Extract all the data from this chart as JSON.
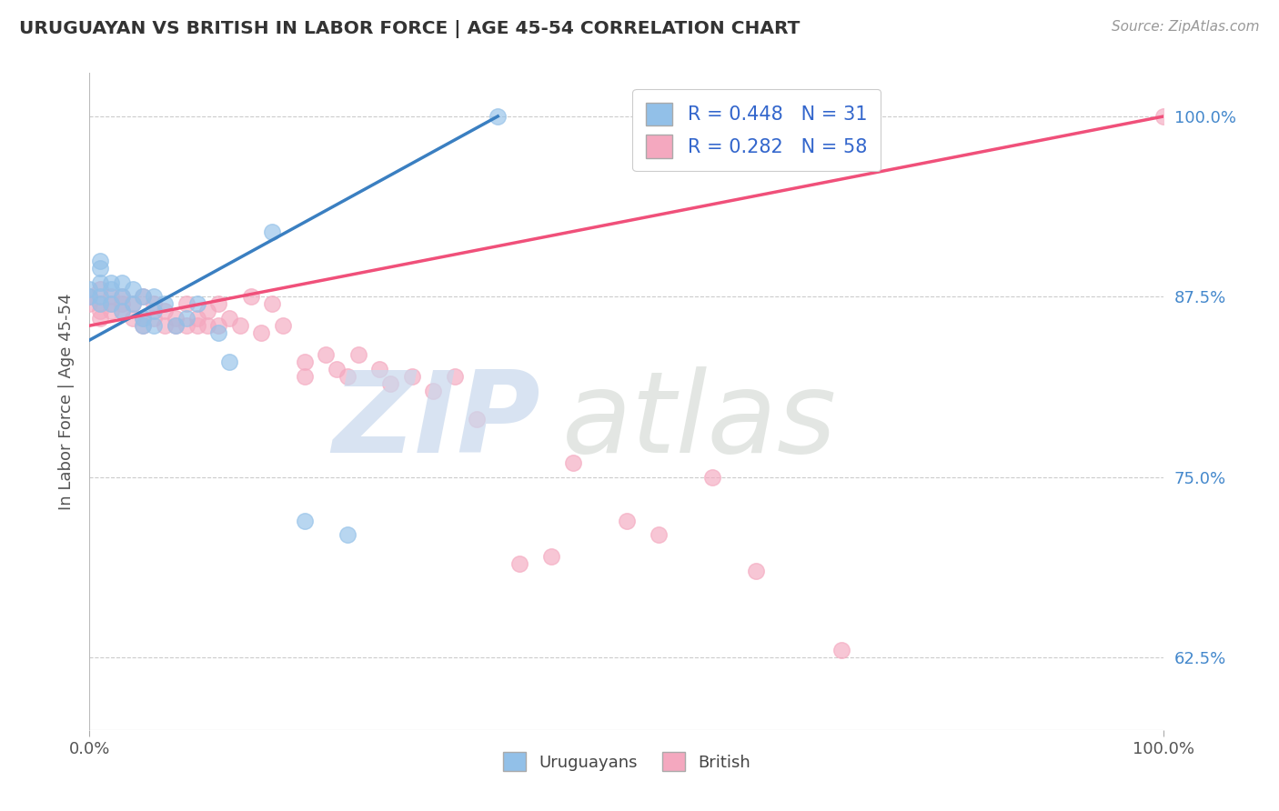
{
  "title": "URUGUAYAN VS BRITISH IN LABOR FORCE | AGE 45-54 CORRELATION CHART",
  "source": "Source: ZipAtlas.com",
  "ylabel": "In Labor Force | Age 45-54",
  "xlim": [
    0.0,
    1.0
  ],
  "ylim": [
    0.575,
    1.03
  ],
  "xtick_labels": [
    "0.0%",
    "100.0%"
  ],
  "ytick_labels": [
    "62.5%",
    "75.0%",
    "87.5%",
    "100.0%"
  ],
  "ytick_values": [
    0.625,
    0.75,
    0.875,
    1.0
  ],
  "legend_label1": "R = 0.448   N = 31",
  "legend_label2": "R = 0.282   N = 58",
  "color_uruguayan": "#92c0e8",
  "color_british": "#f4a8bf",
  "line_color_uruguayan": "#3a7fc1",
  "line_color_british": "#f0507a",
  "uruguayan_x": [
    0.0,
    0.0,
    0.01,
    0.01,
    0.01,
    0.01,
    0.01,
    0.02,
    0.02,
    0.02,
    0.03,
    0.03,
    0.03,
    0.04,
    0.04,
    0.05,
    0.05,
    0.05,
    0.06,
    0.06,
    0.06,
    0.07,
    0.08,
    0.09,
    0.1,
    0.12,
    0.13,
    0.17,
    0.2,
    0.24,
    0.38
  ],
  "uruguayan_y": [
    0.88,
    0.875,
    0.9,
    0.895,
    0.885,
    0.875,
    0.87,
    0.885,
    0.88,
    0.87,
    0.885,
    0.875,
    0.865,
    0.88,
    0.87,
    0.875,
    0.86,
    0.855,
    0.875,
    0.865,
    0.855,
    0.87,
    0.855,
    0.86,
    0.87,
    0.85,
    0.83,
    0.92,
    0.72,
    0.71,
    1.0
  ],
  "british_x": [
    0.0,
    0.0,
    0.01,
    0.01,
    0.01,
    0.01,
    0.02,
    0.02,
    0.02,
    0.03,
    0.03,
    0.03,
    0.04,
    0.04,
    0.05,
    0.05,
    0.05,
    0.06,
    0.06,
    0.07,
    0.07,
    0.08,
    0.08,
    0.09,
    0.09,
    0.1,
    0.1,
    0.11,
    0.11,
    0.12,
    0.12,
    0.13,
    0.14,
    0.15,
    0.16,
    0.17,
    0.18,
    0.2,
    0.2,
    0.22,
    0.23,
    0.24,
    0.25,
    0.27,
    0.28,
    0.3,
    0.32,
    0.34,
    0.36,
    0.4,
    0.43,
    0.45,
    0.5,
    0.53,
    0.58,
    0.62,
    0.7,
    1.0
  ],
  "british_y": [
    0.875,
    0.87,
    0.88,
    0.87,
    0.865,
    0.86,
    0.875,
    0.87,
    0.865,
    0.875,
    0.87,
    0.865,
    0.87,
    0.86,
    0.875,
    0.86,
    0.855,
    0.87,
    0.86,
    0.865,
    0.855,
    0.86,
    0.855,
    0.87,
    0.855,
    0.86,
    0.855,
    0.865,
    0.855,
    0.87,
    0.855,
    0.86,
    0.855,
    0.875,
    0.85,
    0.87,
    0.855,
    0.83,
    0.82,
    0.835,
    0.825,
    0.82,
    0.835,
    0.825,
    0.815,
    0.82,
    0.81,
    0.82,
    0.79,
    0.69,
    0.695,
    0.76,
    0.72,
    0.71,
    0.75,
    0.685,
    0.63,
    1.0
  ]
}
